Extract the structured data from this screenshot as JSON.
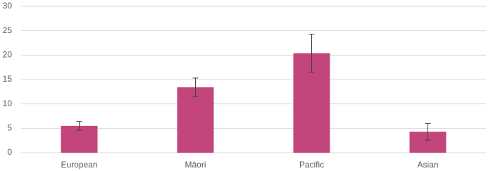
{
  "chart_data": {
    "type": "bar",
    "categories": [
      "European",
      "Māori",
      "Pacific",
      "Asian"
    ],
    "values": [
      5.5,
      13.4,
      20.4,
      4.3
    ],
    "errors": [
      0.9,
      1.9,
      3.9,
      1.7
    ],
    "color": "#c2467b",
    "ylim": [
      0,
      30
    ],
    "yticks": [
      0,
      5,
      10,
      15,
      20,
      25,
      30
    ],
    "grid": true
  }
}
